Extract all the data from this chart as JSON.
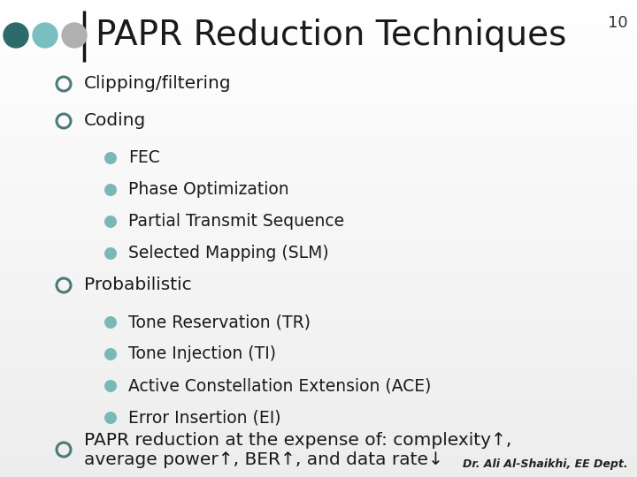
{
  "title": "PAPR Reduction Techniques",
  "slide_number": "10",
  "footer": "Dr. Ali Al-Shaikhi, EE Dept.",
  "title_color": "#1a1a1a",
  "title_bar_color": "#111111",
  "dot_colors": [
    "#2d6b6b",
    "#7abfbf",
    "#b0b0b0"
  ],
  "bullet_outer_color": "#4a7a7a",
  "bullet_inner_color": "#7ab8b8",
  "content": [
    {
      "level": 1,
      "text": "Clipping/filtering"
    },
    {
      "level": 1,
      "text": "Coding"
    },
    {
      "level": 2,
      "text": "FEC"
    },
    {
      "level": 2,
      "text": "Phase Optimization"
    },
    {
      "level": 2,
      "text": "Partial Transmit Sequence"
    },
    {
      "level": 2,
      "text": "Selected Mapping (SLM)"
    },
    {
      "level": 1,
      "text": "Probabilistic"
    },
    {
      "level": 2,
      "text": "Tone Reservation (TR)"
    },
    {
      "level": 2,
      "text": "Tone Injection (TI)"
    },
    {
      "level": 2,
      "text": "Active Constellation Extension (ACE)"
    },
    {
      "level": 2,
      "text": "Error Insertion (EI)"
    },
    {
      "level": 1,
      "text": "PAPR reduction at the expense of: complexity↑,\naverage power↑, BER↑, and data rate↓"
    }
  ],
  "figsize": [
    7.2,
    5.4
  ],
  "dpi": 100
}
